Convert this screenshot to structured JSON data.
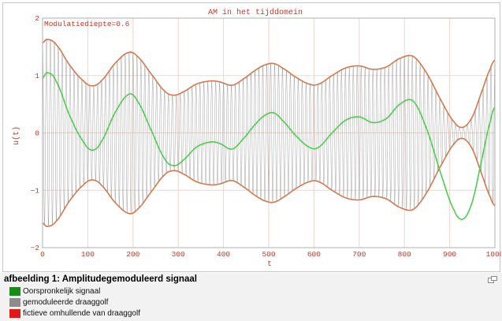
{
  "chart_data": {
    "type": "line",
    "title": "AM in het tijddomein",
    "annotation": "Modulatiediepte=0.6",
    "xlabel": "t",
    "ylabel": "u(t)",
    "xlim": [
      0,
      1000
    ],
    "ylim": [
      -2,
      2
    ],
    "x_ticks": [
      "0",
      "100",
      "200",
      "300",
      "400",
      "500",
      "600",
      "700",
      "800",
      "900",
      "1000"
    ],
    "y_ticks": [
      "2",
      "1",
      "0",
      "−1",
      "−2"
    ],
    "grid": true,
    "series": [
      {
        "name": "Oorspronkelijk signaal",
        "color": "#4ecc4e",
        "x": [
          0,
          10,
          30,
          60,
          90,
          110,
          130,
          160,
          190,
          210,
          240,
          270,
          290,
          310,
          340,
          370,
          390,
          420,
          450,
          470,
          490,
          510,
          530,
          560,
          590,
          610,
          640,
          670,
          700,
          730,
          760,
          790,
          820,
          850,
          880,
          910,
          930,
          950,
          970,
          990,
          1000
        ],
        "values": [
          0.95,
          1.05,
          0.9,
          0.3,
          -0.15,
          -0.3,
          -0.15,
          0.35,
          0.67,
          0.55,
          0.05,
          -0.45,
          -0.57,
          -0.48,
          -0.25,
          -0.16,
          -0.18,
          -0.28,
          -0.05,
          0.15,
          0.3,
          0.35,
          0.22,
          -0.05,
          -0.25,
          -0.25,
          0.0,
          0.22,
          0.28,
          0.18,
          0.25,
          0.5,
          0.55,
          0.05,
          -0.7,
          -1.35,
          -1.5,
          -1.2,
          -0.5,
          0.2,
          0.45
        ]
      },
      {
        "name": "gemoduleerde draaggolf",
        "color": "#909090",
        "cycles": 115,
        "envelope": "1 + m * oorspronkelijk signaal"
      },
      {
        "name": "fictieve omhullende van draaggolf",
        "color": "#d2784f",
        "values": "±(1 + m * oorspronkelijk signaal)"
      }
    ],
    "modulation_depth": 0.6
  },
  "caption": {
    "title": "afbeelding 1: Amplitudegemoduleerd signaal",
    "legend": [
      {
        "label": "Oorspronkelijk signaal",
        "color": "#1a8a1a"
      },
      {
        "label": "gemoduleerde draaggolf",
        "color": "#8c8c8c"
      },
      {
        "label": "fictieve omhullende van draaggolf",
        "color": "#e01818"
      }
    ]
  }
}
